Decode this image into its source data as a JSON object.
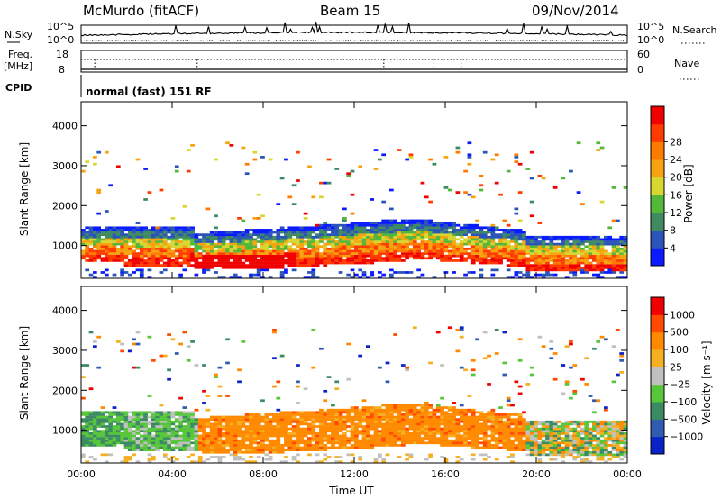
{
  "header": {
    "station": "McMurdo (fitACF)",
    "beam": "Beam 15",
    "date": "09/Nov/2014"
  },
  "noise_panel": {
    "left_label": "N.Sky",
    "right_label": "N.Search",
    "left_ticks": [
      "10^5",
      "10^0"
    ],
    "right_ticks": [
      "10^5",
      "10^0"
    ]
  },
  "freq_panel": {
    "left_label_1": "Freq.",
    "left_label_2": "[MHz]",
    "left_ticks": [
      "18",
      "8"
    ],
    "right_label": "Nave",
    "right_ticks": [
      "60",
      "0"
    ]
  },
  "cpid_panel": {
    "label": "CPID",
    "text": "normal (fast) 151 RF"
  },
  "colors": {
    "power": [
      "#0a1bff",
      "#2b54b8",
      "#3f8a61",
      "#53b73a",
      "#d8d630",
      "#f5a40f",
      "#ff7a00",
      "#ff3b00",
      "#f00000"
    ],
    "velocity": [
      "#0a22c8",
      "#2f5bb0",
      "#3c8a63",
      "#57c63a",
      "#c0c0c0",
      "#f5b021",
      "#ff8a00",
      "#ff4a00",
      "#f00000"
    ]
  },
  "chart_data": [
    {
      "type": "heatmap",
      "title": "",
      "ylabel": "Slant Range [km]",
      "xlabel": "",
      "ylim": [
        180,
        4600
      ],
      "yticks": [
        "1000",
        "2000",
        "3000",
        "4000"
      ],
      "xticks": [
        "00:00",
        "04:00",
        "08:00",
        "12:00",
        "16:00",
        "20:00",
        "00:00"
      ],
      "colorbar_label": "Power [dB]",
      "colorbar_ticks": [
        "4",
        "8",
        "12",
        "16",
        "20",
        "24",
        "28"
      ]
    },
    {
      "type": "heatmap",
      "title": "",
      "ylabel": "Slant Range [km]",
      "xlabel": "Time UT",
      "ylim": [
        180,
        4600
      ],
      "yticks": [
        "1000",
        "2000",
        "3000",
        "4000"
      ],
      "xticks": [
        "00:00",
        "04:00",
        "08:00",
        "12:00",
        "16:00",
        "20:00",
        "00:00"
      ],
      "colorbar_label": "Velocity [m s⁻¹]",
      "colorbar_ticks": [
        "1000",
        "500",
        "100",
        "25",
        "−25",
        "−100",
        "−500",
        "−1000"
      ]
    }
  ]
}
